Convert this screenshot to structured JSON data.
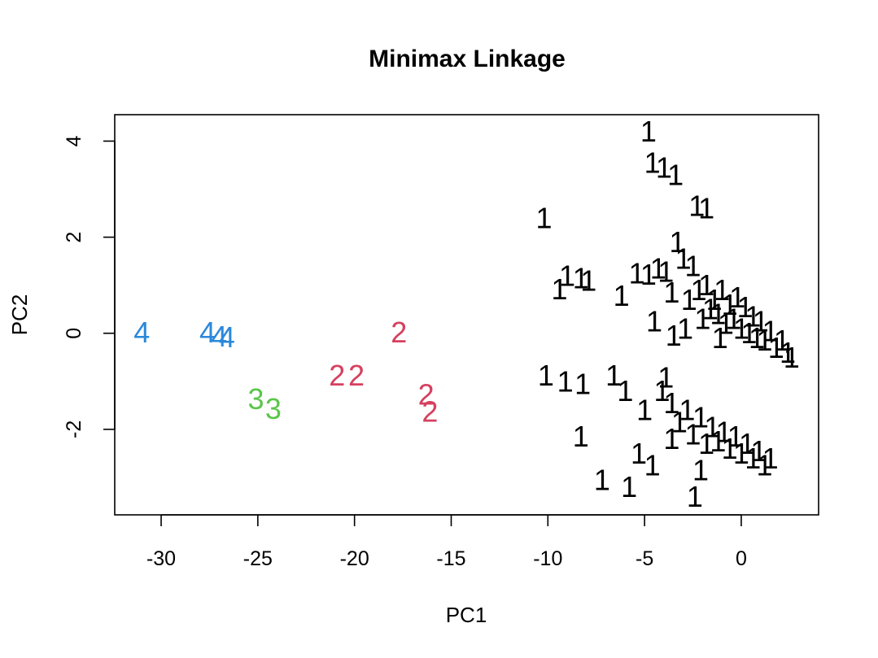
{
  "chart_data": {
    "type": "scatter",
    "title": "Minimax Linkage",
    "xlabel": "PC1",
    "ylabel": "PC2",
    "xlim": [
      -32.4,
      4.0
    ],
    "ylim": [
      -3.78,
      4.55
    ],
    "xticks": [
      -30,
      -25,
      -20,
      -15,
      -10,
      -5,
      0
    ],
    "yticks": [
      -2,
      0,
      2,
      4
    ],
    "grid": false,
    "legend": "none",
    "marker": "cluster number glyph",
    "series": [
      {
        "label": "4",
        "color": "#2a88db",
        "points": [
          [
            -31.0,
            0.02
          ],
          [
            -27.6,
            0.02
          ],
          [
            -27.0,
            -0.06
          ],
          [
            -26.6,
            -0.08
          ]
        ]
      },
      {
        "label": "3",
        "color": "#5cc54c",
        "points": [
          [
            -25.1,
            -1.37
          ],
          [
            -24.2,
            -1.57
          ]
        ]
      },
      {
        "label": "2",
        "color": "#d6405f",
        "points": [
          [
            -17.7,
            0.02
          ],
          [
            -20.9,
            -0.88
          ],
          [
            -19.9,
            -0.88
          ],
          [
            -16.3,
            -1.27
          ],
          [
            -16.1,
            -1.63
          ]
        ]
      },
      {
        "label": "1",
        "color": "#000000",
        "points": [
          [
            -4.8,
            4.2
          ],
          [
            -4.6,
            3.55
          ],
          [
            -4.0,
            3.45
          ],
          [
            -3.4,
            3.3
          ],
          [
            -2.3,
            2.65
          ],
          [
            -1.8,
            2.6
          ],
          [
            -10.2,
            2.4
          ],
          [
            -9.4,
            0.92
          ],
          [
            -9.0,
            1.2
          ],
          [
            -8.3,
            1.15
          ],
          [
            -7.9,
            1.1
          ],
          [
            -6.2,
            0.78
          ],
          [
            -5.4,
            1.25
          ],
          [
            -4.8,
            1.22
          ],
          [
            -4.5,
            0.25
          ],
          [
            -4.3,
            1.35
          ],
          [
            -3.9,
            1.28
          ],
          [
            -3.6,
            0.85
          ],
          [
            -3.5,
            -0.05
          ],
          [
            -3.3,
            1.9
          ],
          [
            -3.0,
            1.55
          ],
          [
            -2.7,
            0.7
          ],
          [
            -2.5,
            1.4
          ],
          [
            -2.2,
            0.9
          ],
          [
            -2.0,
            0.3
          ],
          [
            -1.8,
            1.0
          ],
          [
            -1.6,
            0.5
          ],
          [
            -1.4,
            0.7
          ],
          [
            -1.2,
            0.4
          ],
          [
            -1.0,
            0.9
          ],
          [
            -0.8,
            0.2
          ],
          [
            -0.6,
            0.6
          ],
          [
            -0.4,
            0.3
          ],
          [
            -0.2,
            0.75
          ],
          [
            0.0,
            0.1
          ],
          [
            0.2,
            0.55
          ],
          [
            0.4,
            0.0
          ],
          [
            0.6,
            0.35
          ],
          [
            0.8,
            -0.1
          ],
          [
            1.0,
            0.25
          ],
          [
            1.2,
            -0.15
          ],
          [
            1.5,
            0.05
          ],
          [
            1.8,
            -0.3
          ],
          [
            2.1,
            -0.15
          ],
          [
            2.4,
            -0.4
          ],
          [
            2.6,
            -0.5
          ],
          [
            -2.9,
            0.1
          ],
          [
            -1.1,
            -0.1
          ],
          [
            -10.1,
            -0.88
          ],
          [
            -9.1,
            -1.0
          ],
          [
            -8.2,
            -1.05
          ],
          [
            -6.6,
            -0.88
          ],
          [
            -6.0,
            -1.2
          ],
          [
            -5.0,
            -1.6
          ],
          [
            -4.1,
            -1.2
          ],
          [
            -3.9,
            -0.92
          ],
          [
            -3.6,
            -1.45
          ],
          [
            -3.2,
            -1.85
          ],
          [
            -2.8,
            -1.6
          ],
          [
            -2.5,
            -2.1
          ],
          [
            -2.1,
            -1.75
          ],
          [
            -1.8,
            -2.3
          ],
          [
            -1.5,
            -1.95
          ],
          [
            -1.2,
            -2.25
          ],
          [
            -0.9,
            -2.05
          ],
          [
            -0.6,
            -2.4
          ],
          [
            -0.3,
            -2.15
          ],
          [
            0.0,
            -2.5
          ],
          [
            0.3,
            -2.3
          ],
          [
            0.6,
            -2.6
          ],
          [
            0.9,
            -2.45
          ],
          [
            1.2,
            -2.75
          ],
          [
            1.5,
            -2.6
          ],
          [
            -8.3,
            -2.15
          ],
          [
            -5.3,
            -2.5
          ],
          [
            -4.6,
            -2.75
          ],
          [
            -7.2,
            -3.05
          ],
          [
            -5.8,
            -3.2
          ],
          [
            -2.4,
            -3.4
          ],
          [
            -3.6,
            -2.2
          ],
          [
            -2.1,
            -2.85
          ]
        ]
      }
    ]
  }
}
